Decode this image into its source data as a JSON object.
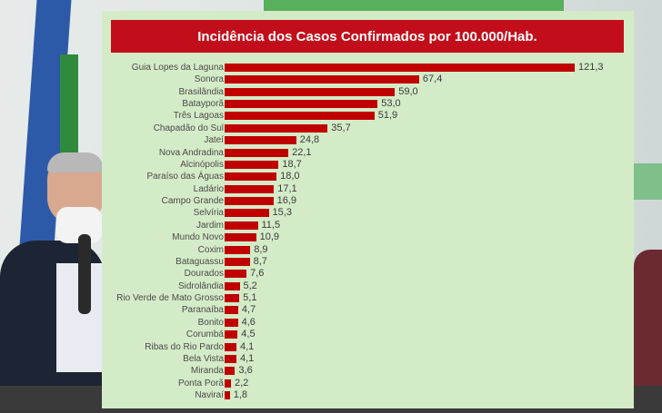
{
  "chart_data": {
    "type": "bar",
    "orientation": "horizontal",
    "title": "Incidência dos Casos Confirmados por 100.000/Hab.",
    "categories": [
      "Guia Lopes da Laguna",
      "Sonora",
      "Brasilândia",
      "Batayporã",
      "Três Lagoas",
      "Chapadão do Sul",
      "Jateí",
      "Nova Andradina",
      "Alcinópolis",
      "Paraíso das Águas",
      "Ladário",
      "Campo Grande",
      "Selvíria",
      "Jardim",
      "Mundo Novo",
      "Coxim",
      "Bataguassu",
      "Dourados",
      "Sidrolândia",
      "Rio Verde de Mato Grosso",
      "Paranaíba",
      "Bonito",
      "Corumbá",
      "Ribas do Rio Pardo",
      "Bela Vista",
      "Miranda",
      "Ponta Porã",
      "Naviraí"
    ],
    "values": [
      121.3,
      67.4,
      59.0,
      53.0,
      51.9,
      35.7,
      24.8,
      22.1,
      18.7,
      18.0,
      17.1,
      16.9,
      15.3,
      11.5,
      10.9,
      8.9,
      8.7,
      7.6,
      5.2,
      5.1,
      4.7,
      4.6,
      4.5,
      4.1,
      4.1,
      3.6,
      2.2,
      1.8
    ],
    "labels": [
      "121,3",
      "67,4",
      "59,0",
      "53,0",
      "51,9",
      "35,7",
      "24,8",
      "22,1",
      "18,7",
      "18,0",
      "17,1",
      "16,9",
      "15,3",
      "11,5",
      "10,9",
      "8,9",
      "8,7",
      "7,6",
      "5,2",
      "5,1",
      "4,7",
      "4,6",
      "4,5",
      "4,1",
      "4,1",
      "3,6",
      "2,2",
      "1,8"
    ],
    "grid": false,
    "legend": "none",
    "colors": {
      "bar": "#c00000",
      "title_bg": "#c20e1a",
      "panel_bg": "#d4ebc8"
    }
  }
}
